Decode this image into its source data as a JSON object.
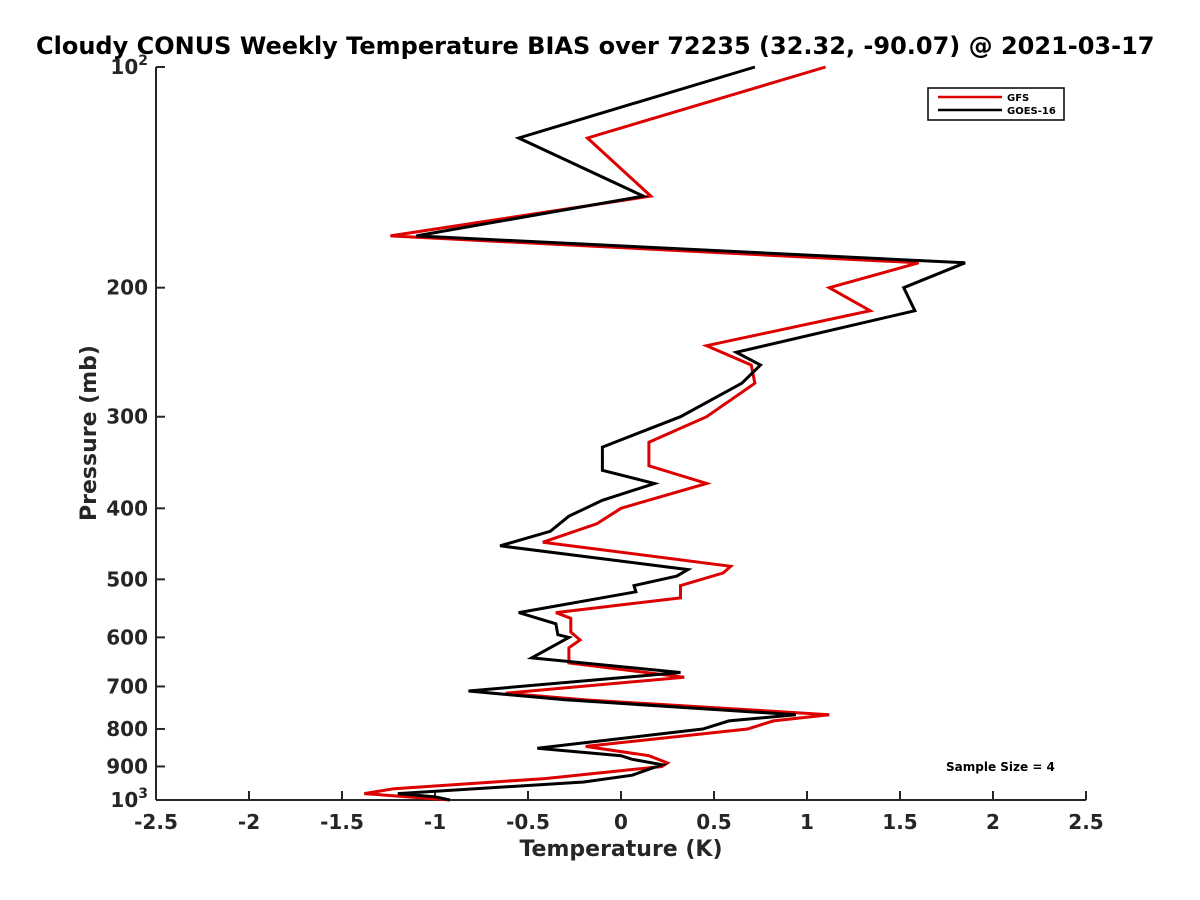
{
  "chart_data": {
    "type": "line",
    "title": "Cloudy CONUS Weekly Temperature BIAS over 72235 (32.32, -90.07) @ 2021-03-17",
    "xlabel": "Temperature (K)",
    "ylabel": "Pressure (mb)",
    "xlim": [
      -2.5,
      2.5
    ],
    "ylim": [
      100,
      1000
    ],
    "yscale": "log",
    "yreversed": true,
    "x_ticks": [
      -2.5,
      -2,
      -1.5,
      -1,
      -0.5,
      0,
      0.5,
      1,
      1.5,
      2,
      2.5
    ],
    "x_tick_labels": [
      "-2.5",
      "-2",
      "-1.5",
      "-1",
      "-0.5",
      "0",
      "0.5",
      "1",
      "1.5",
      "2",
      "2.5"
    ],
    "y_ticks": [
      100,
      200,
      300,
      400,
      500,
      600,
      700,
      800,
      900,
      1000
    ],
    "y_tick_labels": [
      {
        "base": "10",
        "exp": "2"
      },
      {
        "base": "200",
        "exp": ""
      },
      {
        "base": "300",
        "exp": ""
      },
      {
        "base": "400",
        "exp": ""
      },
      {
        "base": "500",
        "exp": ""
      },
      {
        "base": "600",
        "exp": ""
      },
      {
        "base": "700",
        "exp": ""
      },
      {
        "base": "800",
        "exp": ""
      },
      {
        "base": "900",
        "exp": ""
      },
      {
        "base": "10",
        "exp": "3"
      }
    ],
    "legend_position": "top-right",
    "annotation": "Sample Size = 4",
    "series": [
      {
        "name": "GFS",
        "color": "#dd0000",
        "points": [
          [
            1.1,
            100
          ],
          [
            -0.18,
            125
          ],
          [
            0.16,
            150
          ],
          [
            -1.24,
            170
          ],
          [
            1.6,
            185
          ],
          [
            1.12,
            200
          ],
          [
            1.34,
            215
          ],
          [
            0.46,
            240
          ],
          [
            0.7,
            255
          ],
          [
            0.72,
            270
          ],
          [
            0.46,
            300
          ],
          [
            0.15,
            325
          ],
          [
            0.15,
            350
          ],
          [
            0.46,
            370
          ],
          [
            0.0,
            400
          ],
          [
            -0.13,
            420
          ],
          [
            -0.42,
            445
          ],
          [
            0.59,
            480
          ],
          [
            0.55,
            490
          ],
          [
            0.32,
            510
          ],
          [
            0.32,
            530
          ],
          [
            -0.35,
            555
          ],
          [
            -0.27,
            565
          ],
          [
            -0.27,
            590
          ],
          [
            -0.22,
            605
          ],
          [
            -0.28,
            620
          ],
          [
            -0.28,
            650
          ],
          [
            0.34,
            680
          ],
          [
            -0.62,
            715
          ],
          [
            -0.2,
            730
          ],
          [
            1.12,
            765
          ],
          [
            0.82,
            780
          ],
          [
            0.68,
            800
          ],
          [
            -0.19,
            845
          ],
          [
            0.15,
            870
          ],
          [
            0.25,
            890
          ],
          [
            0.22,
            900
          ],
          [
            -0.41,
            935
          ],
          [
            -1.22,
            965
          ],
          [
            -1.38,
            980
          ],
          [
            -0.92,
            1000
          ]
        ]
      },
      {
        "name": "GOES-16",
        "color": "#000000",
        "points": [
          [
            0.72,
            100
          ],
          [
            -0.55,
            125
          ],
          [
            0.12,
            150
          ],
          [
            -1.1,
            170
          ],
          [
            1.85,
            185
          ],
          [
            1.52,
            200
          ],
          [
            1.58,
            215
          ],
          [
            0.62,
            245
          ],
          [
            0.75,
            255
          ],
          [
            0.65,
            270
          ],
          [
            0.32,
            300
          ],
          [
            -0.1,
            330
          ],
          [
            -0.1,
            355
          ],
          [
            0.18,
            370
          ],
          [
            -0.1,
            390
          ],
          [
            -0.28,
            410
          ],
          [
            -0.38,
            430
          ],
          [
            -0.65,
            450
          ],
          [
            0.36,
            485
          ],
          [
            0.3,
            495
          ],
          [
            0.07,
            510
          ],
          [
            0.08,
            520
          ],
          [
            -0.55,
            555
          ],
          [
            -0.35,
            575
          ],
          [
            -0.34,
            595
          ],
          [
            -0.28,
            600
          ],
          [
            -0.48,
            640
          ],
          [
            0.32,
            670
          ],
          [
            -0.82,
            710
          ],
          [
            -0.3,
            730
          ],
          [
            0.94,
            765
          ],
          [
            0.58,
            780
          ],
          [
            0.44,
            800
          ],
          [
            -0.45,
            850
          ],
          [
            0.0,
            870
          ],
          [
            0.06,
            880
          ],
          [
            0.22,
            895
          ],
          [
            0.06,
            925
          ],
          [
            -0.2,
            945
          ],
          [
            -1.2,
            980
          ],
          [
            -1.0,
            990
          ],
          [
            -0.92,
            1000
          ]
        ]
      }
    ]
  }
}
